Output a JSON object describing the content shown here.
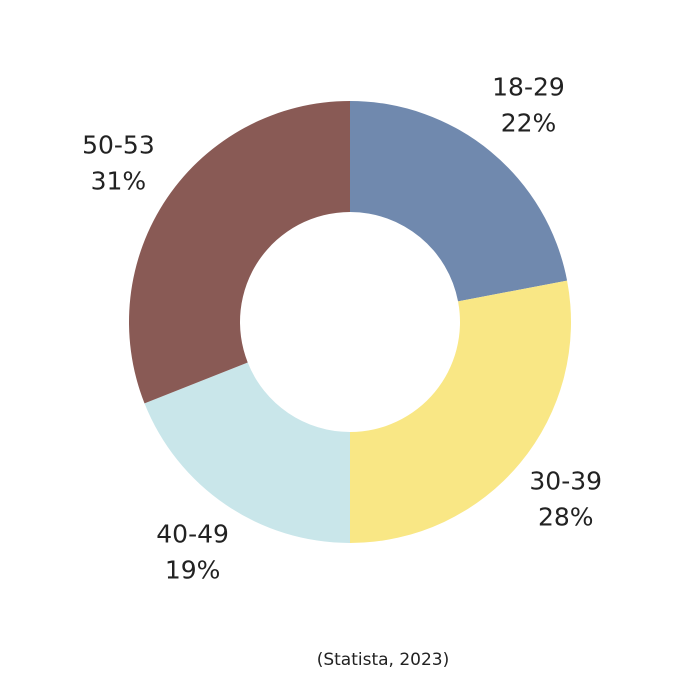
{
  "chart_data": {
    "type": "donut",
    "categories": [
      "18-29",
      "30-39",
      "40-49",
      "50-53"
    ],
    "values": [
      22,
      28,
      19,
      31
    ],
    "value_labels": [
      "22%",
      "28%",
      "19%",
      "31%"
    ],
    "colors": [
      "#7089ae",
      "#f9e785",
      "#c9e6ea",
      "#895a55"
    ],
    "source": "(Statista, 2023)"
  }
}
